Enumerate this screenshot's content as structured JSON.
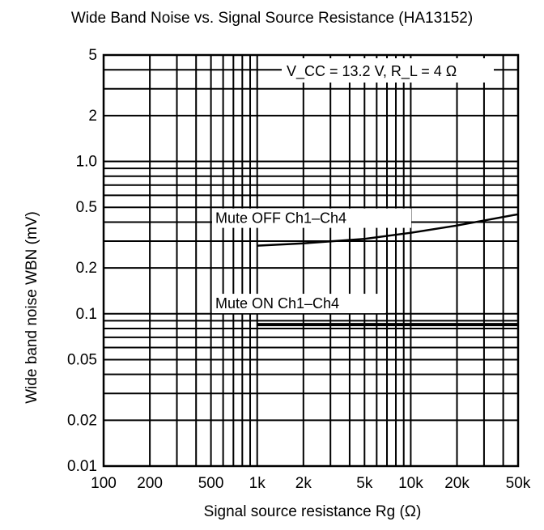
{
  "chart_data": {
    "type": "line",
    "title": "Wide Band Noise vs. Signal Source Resistance (HA13152)",
    "xlabel": "Signal source resistance  Rg (Ω)",
    "ylabel": "Wide band noise  WBN (mV)",
    "x_scale": "log",
    "y_scale": "log",
    "xlim": [
      100,
      50000
    ],
    "ylim": [
      0.01,
      5
    ],
    "grid": true,
    "x_ticks": [
      {
        "value": 100,
        "label": "100"
      },
      {
        "value": 200,
        "label": "200"
      },
      {
        "value": 500,
        "label": "500"
      },
      {
        "value": 1000,
        "label": "1k"
      },
      {
        "value": 2000,
        "label": "2k"
      },
      {
        "value": 5000,
        "label": "5k"
      },
      {
        "value": 10000,
        "label": "10k"
      },
      {
        "value": 20000,
        "label": "20k"
      },
      {
        "value": 50000,
        "label": "50k"
      }
    ],
    "y_ticks": [
      {
        "value": 0.01,
        "label": "0.01"
      },
      {
        "value": 0.02,
        "label": "0.02"
      },
      {
        "value": 0.05,
        "label": "0.05"
      },
      {
        "value": 0.1,
        "label": "0.1"
      },
      {
        "value": 0.2,
        "label": "0.2"
      },
      {
        "value": 0.5,
        "label": "0.5"
      },
      {
        "value": 1.0,
        "label": "1.0"
      },
      {
        "value": 2,
        "label": "2"
      },
      {
        "value": 5,
        "label": "5"
      }
    ],
    "annotation": "V_CC = 13.2 V, R_L = 4 Ω",
    "series": [
      {
        "name": "Mute OFF Ch1–Ch4",
        "x": [
          1000,
          2000,
          5000,
          10000,
          20000,
          50000
        ],
        "y": [
          0.28,
          0.29,
          0.31,
          0.34,
          0.38,
          0.45
        ]
      },
      {
        "name": "Mute ON Ch1–Ch4",
        "x": [
          1000,
          2000,
          5000,
          10000,
          20000,
          50000
        ],
        "y": [
          0.085,
          0.085,
          0.085,
          0.085,
          0.085,
          0.085
        ]
      }
    ]
  }
}
